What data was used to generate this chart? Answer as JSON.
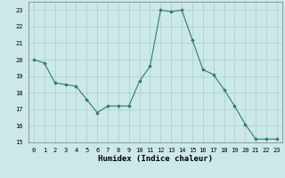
{
  "x": [
    0,
    1,
    2,
    3,
    4,
    5,
    6,
    7,
    8,
    9,
    10,
    11,
    12,
    13,
    14,
    15,
    16,
    17,
    18,
    19,
    20,
    21,
    22,
    23
  ],
  "y": [
    20.0,
    19.8,
    18.6,
    18.5,
    18.4,
    17.6,
    16.8,
    17.2,
    17.2,
    17.2,
    18.7,
    19.6,
    23.0,
    22.9,
    23.0,
    21.2,
    19.4,
    19.1,
    18.2,
    17.2,
    16.1,
    15.2,
    15.2,
    15.2
  ],
  "line_color": "#2e7d6e",
  "marker": "D",
  "marker_size": 1.8,
  "bg_color": "#cce8e8",
  "grid_color": "#aacece",
  "xlabel": "Humidex (Indice chaleur)",
  "ylim": [
    15,
    23.5
  ],
  "xlim": [
    -0.5,
    23.5
  ],
  "yticks": [
    15,
    16,
    17,
    18,
    19,
    20,
    21,
    22,
    23
  ],
  "xticks": [
    0,
    1,
    2,
    3,
    4,
    5,
    6,
    7,
    8,
    9,
    10,
    11,
    12,
    13,
    14,
    15,
    16,
    17,
    18,
    19,
    20,
    21,
    22,
    23
  ],
  "tick_fontsize": 5.0,
  "xlabel_fontsize": 6.5,
  "linewidth": 0.8
}
